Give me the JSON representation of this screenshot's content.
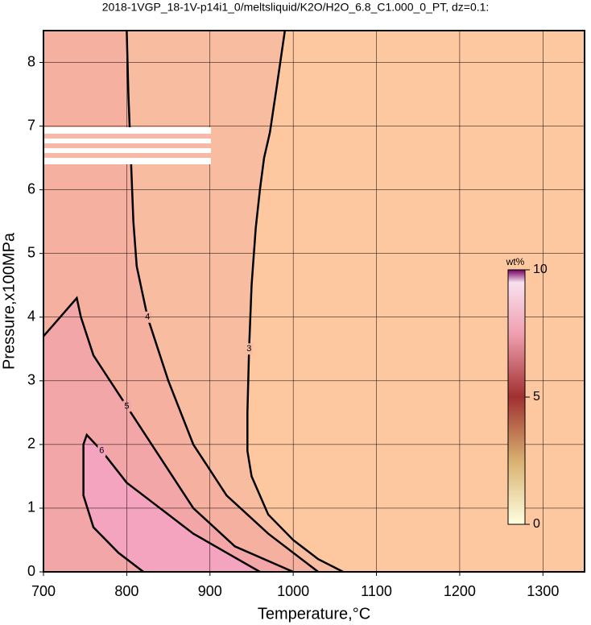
{
  "chart_data": {
    "type": "contour",
    "title": "2018-1VGP_18-1V-p14i1_0/meltsliquid/K2O/H2O_6.8_C1.000_0_PT, dz=0.1:",
    "x_label": "Temperature,°C",
    "y_label": "Pressure,x100MPa",
    "xlim": [
      700,
      1350
    ],
    "ylim": [
      0,
      8.5
    ],
    "xticks": [
      700,
      800,
      900,
      1000,
      1100,
      1200,
      1300
    ],
    "yticks": [
      0,
      1,
      2,
      3,
      4,
      5,
      6,
      7,
      8
    ],
    "grid": true,
    "background": "#fdc8a0",
    "contours": [
      {
        "level": 3,
        "fill": "#f8bca0",
        "x": [
          990,
          980,
          972,
          965,
          960,
          955,
          950,
          947,
          945,
          945,
          950,
          970,
          1000,
          1030,
          1060
        ],
        "y": [
          8.5,
          7.6,
          6.9,
          6.5,
          6.0,
          5.4,
          4.5,
          3.5,
          2.5,
          1.9,
          1.5,
          0.9,
          0.5,
          0.2,
          0
        ]
      },
      {
        "level": 4,
        "fill": "#f5b0a0",
        "x": [
          800,
          802,
          805,
          808,
          812,
          825,
          850,
          880,
          920,
          970,
          1030
        ],
        "y": [
          8.5,
          7.5,
          6.5,
          5.5,
          4.8,
          4.0,
          3.0,
          2.0,
          1.2,
          0.6,
          0
        ]
      },
      {
        "level": 5,
        "fill": "#f3a6a8",
        "x": [
          700,
          720,
          740,
          745,
          760,
          800,
          840,
          880,
          930,
          1000
        ],
        "y": [
          3.7,
          4.0,
          4.3,
          4.0,
          3.4,
          2.6,
          1.8,
          1.0,
          0.4,
          0
        ]
      },
      {
        "level": 6,
        "fill": "#f5a4c0",
        "x": [
          820,
          790,
          760,
          748,
          748,
          752,
          770,
          800,
          840,
          880,
          920,
          960
        ],
        "y": [
          0,
          0.3,
          0.7,
          1.2,
          2.0,
          2.15,
          1.9,
          1.4,
          1.0,
          0.6,
          0.3,
          0
        ]
      }
    ],
    "colorbar": {
      "label": "wt%",
      "lim": [
        0,
        10
      ],
      "ticks": [
        0,
        5,
        10
      ]
    }
  }
}
